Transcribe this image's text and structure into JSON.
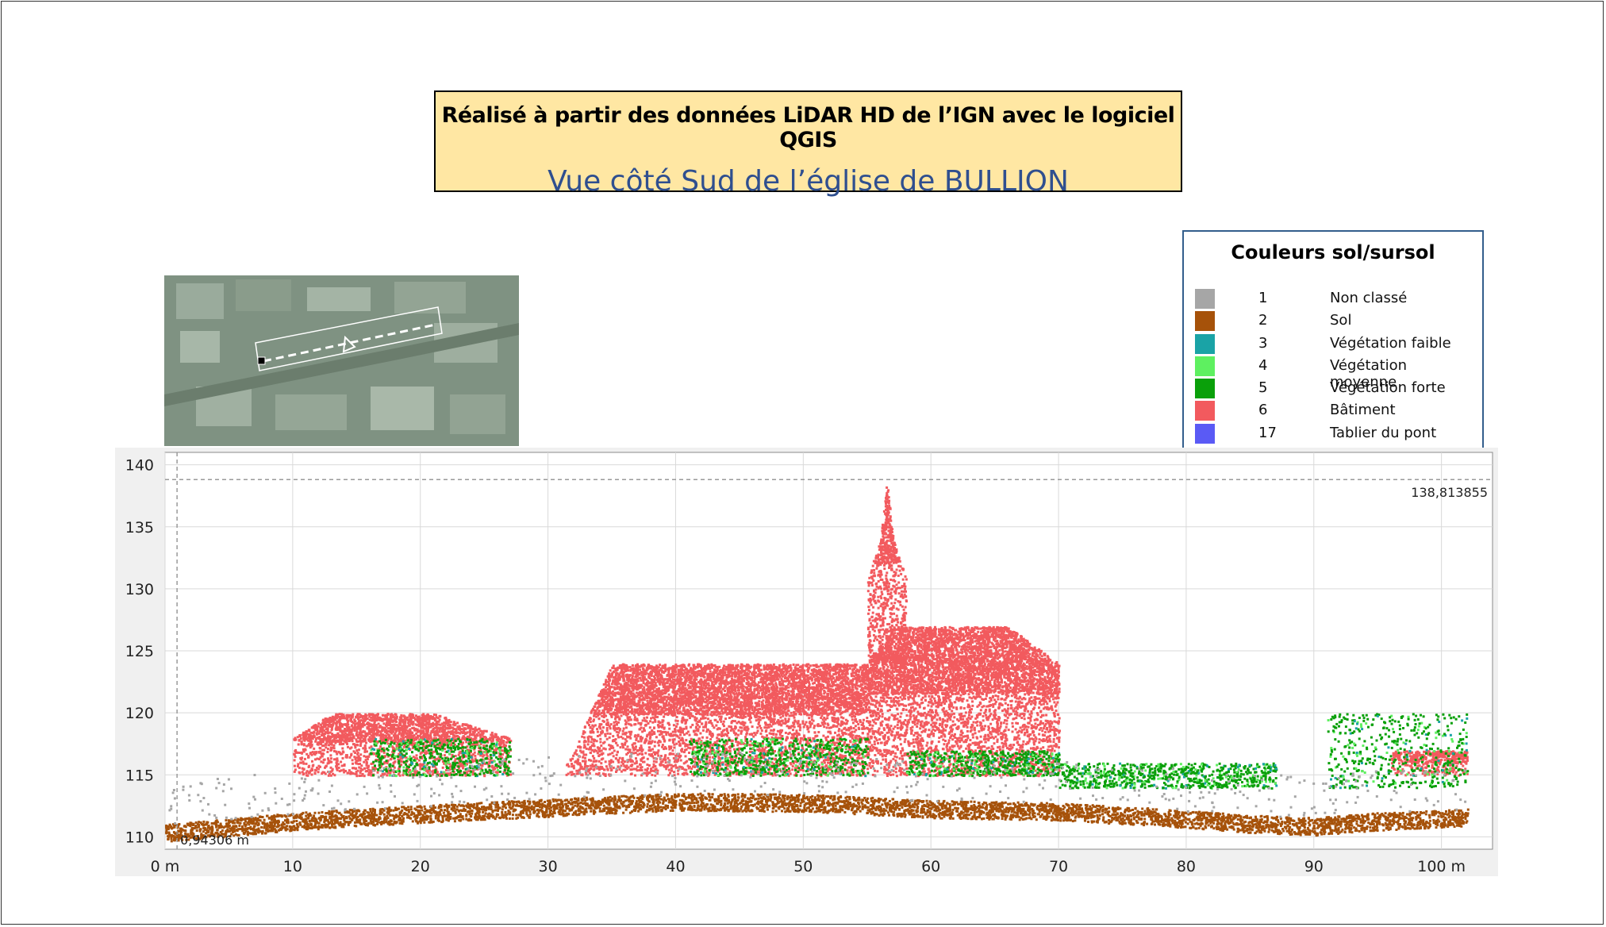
{
  "header": {
    "line1": "Réalisé à partir des données LiDAR HD de l’IGN avec le logiciel QGIS",
    "line2": "Vue côté Sud de l’église de BULLION"
  },
  "legend": {
    "title": "Couleurs sol/sursol",
    "items": [
      {
        "code": "1",
        "label": "Non classé",
        "color": "#a6a6a6"
      },
      {
        "code": "2",
        "label": "Sol",
        "color": "#a6520a"
      },
      {
        "code": "3",
        "label": "Végétation faible",
        "color": "#1aa3a6"
      },
      {
        "code": "4",
        "label": "Végétation moyenne",
        "color": "#5ef060"
      },
      {
        "code": "5",
        "label": "Végétation forte",
        "color": "#0aa00a"
      },
      {
        "code": "6",
        "label": "Bâtiment",
        "color": "#f25a5e"
      },
      {
        "code": "17",
        "label": "Tablier du pont",
        "color": "#5a5af5"
      }
    ]
  },
  "chart_data": {
    "type": "scatter",
    "xlim": [
      0,
      104
    ],
    "ylim": [
      109,
      141
    ],
    "x_ticks": [
      0,
      10,
      20,
      30,
      40,
      50,
      60,
      70,
      80,
      90,
      100
    ],
    "x_tick_labels": [
      "0 m",
      "10",
      "20",
      "30",
      "40",
      "50",
      "60",
      "70",
      "80",
      "90",
      "100 m"
    ],
    "y_ticks": [
      110,
      115,
      120,
      125,
      130,
      135,
      140
    ],
    "y_tick_labels": [
      "110",
      "115",
      "120",
      "125",
      "130",
      "135",
      "140"
    ],
    "grid": true,
    "annotations": {
      "max_label": "138,813855",
      "max_value": 138.81,
      "min_label": "0,94306 m",
      "min_x": 0.94
    },
    "ground_profile": {
      "x": [
        0,
        5,
        10,
        20,
        30,
        40,
        50,
        60,
        70,
        80,
        85,
        90,
        95,
        102
      ],
      "y": [
        110.4,
        110.8,
        111.3,
        111.9,
        112.4,
        112.9,
        112.8,
        112.3,
        112.1,
        111.5,
        111.1,
        110.9,
        111.3,
        111.6
      ]
    },
    "buildings": [
      {
        "name": "",
        "polygon": [
          [
            10,
            118
          ],
          [
            13,
            120
          ],
          [
            21,
            120
          ],
          [
            27,
            118
          ],
          [
            27,
            115
          ],
          [
            10,
            115
          ]
        ]
      },
      {
        "name": "",
        "polygon": [
          [
            31,
            115
          ],
          [
            35,
            124
          ],
          [
            55,
            124
          ],
          [
            55,
            115
          ]
        ]
      },
      {
        "name": "",
        "polygon": [
          [
            55,
            124
          ],
          [
            55,
            131
          ],
          [
            56,
            134
          ],
          [
            56.5,
            138.8
          ],
          [
            57,
            134
          ],
          [
            58,
            131
          ],
          [
            58,
            124
          ]
        ]
      },
      {
        "name": "",
        "polygon": [
          [
            55,
            124
          ],
          [
            57,
            127
          ],
          [
            66,
            127
          ],
          [
            70,
            124
          ],
          [
            70,
            115
          ],
          [
            55,
            115
          ]
        ]
      },
      {
        "name": "",
        "polygon": [
          [
            96,
            115
          ],
          [
            96,
            117
          ],
          [
            102,
            117
          ],
          [
            102,
            115
          ]
        ]
      }
    ],
    "vegetation": [
      {
        "x": [
          16,
          27
        ],
        "y": [
          115,
          118
        ]
      },
      {
        "x": [
          41,
          55
        ],
        "y": [
          115,
          118
        ]
      },
      {
        "x": [
          58,
          70
        ],
        "y": [
          115,
          117
        ]
      },
      {
        "x": [
          70,
          87
        ],
        "y": [
          114,
          116
        ]
      },
      {
        "x": [
          91,
          102
        ],
        "y": [
          114,
          120
        ]
      }
    ]
  }
}
